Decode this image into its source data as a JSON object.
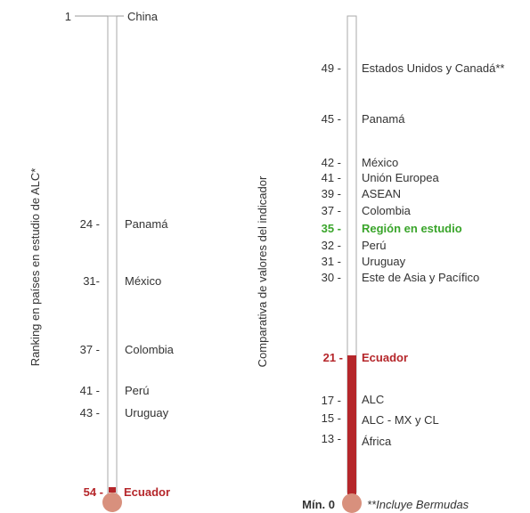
{
  "colors": {
    "highlight": "#b5262a",
    "region": "#3aa52b",
    "bulb": "#d8907d",
    "tube_border": "#aaaaaa",
    "text": "#333333"
  },
  "left_panel": {
    "axis_title": "Ranking en países en estudio de ALC*",
    "top_rank": "1",
    "top_country": "China",
    "items": [
      {
        "rank": "24 -",
        "country": "Panamá"
      },
      {
        "rank": "31-",
        "country": "México"
      },
      {
        "rank": "37 -",
        "country": "Colombia"
      },
      {
        "rank": "41 -",
        "country": "Perú"
      },
      {
        "rank": "43 -",
        "country": "Uruguay"
      }
    ],
    "highlight": {
      "rank": "54 -",
      "country": "Ecuador"
    }
  },
  "right_panel": {
    "axis_title": "Comparativa de valores del indicador",
    "items": [
      {
        "value": "49 -",
        "name": "Estados Unidos y Canadá**"
      },
      {
        "value": "45 -",
        "name": "Panamá"
      },
      {
        "value": "42 -",
        "name": "México"
      },
      {
        "value": "41 -",
        "name": "Unión Europea"
      },
      {
        "value": "39 -",
        "name": "ASEAN"
      },
      {
        "value": "37 -",
        "name": "Colombia"
      },
      {
        "value": "35 -",
        "name": "Región en estudio"
      },
      {
        "value": "32 -",
        "name": "Perú"
      },
      {
        "value": "31 -",
        "name": "Uruguay"
      },
      {
        "value": "30 -",
        "name": "Este de Asia y Pacífico"
      },
      {
        "value": "21 -",
        "name": "Ecuador"
      },
      {
        "value": "17 -",
        "name": "ALC"
      },
      {
        "value": "15 -",
        "name": "ALC - MX y CL"
      },
      {
        "value": "13 -",
        "name": "África"
      }
    ],
    "min_label": "Mín. 0",
    "footnote": "**Incluye Bermudas",
    "fill_value": 21
  },
  "chart_data": {
    "type": "thermometer",
    "panels": [
      {
        "name": "Ranking en países en estudio de ALC*",
        "categories": [
          "China",
          "Panamá",
          "México",
          "Colombia",
          "Perú",
          "Uruguay",
          "Ecuador"
        ],
        "values": [
          1,
          24,
          31,
          37,
          41,
          43,
          54
        ],
        "highlight": "Ecuador"
      },
      {
        "name": "Comparativa de valores del indicador",
        "categories": [
          "Estados Unidos y Canadá**",
          "Panamá",
          "México",
          "Unión Europea",
          "ASEAN",
          "Colombia",
          "Región en estudio",
          "Perú",
          "Uruguay",
          "Este de Asia y Pacífico",
          "Ecuador",
          "ALC",
          "ALC - MX y CL",
          "África"
        ],
        "values": [
          49,
          45,
          42,
          41,
          39,
          37,
          35,
          32,
          31,
          30,
          21,
          17,
          15,
          13
        ],
        "highlight": "Ecuador",
        "region": "Región en estudio",
        "ylim": [
          0,
          54
        ]
      }
    ]
  }
}
